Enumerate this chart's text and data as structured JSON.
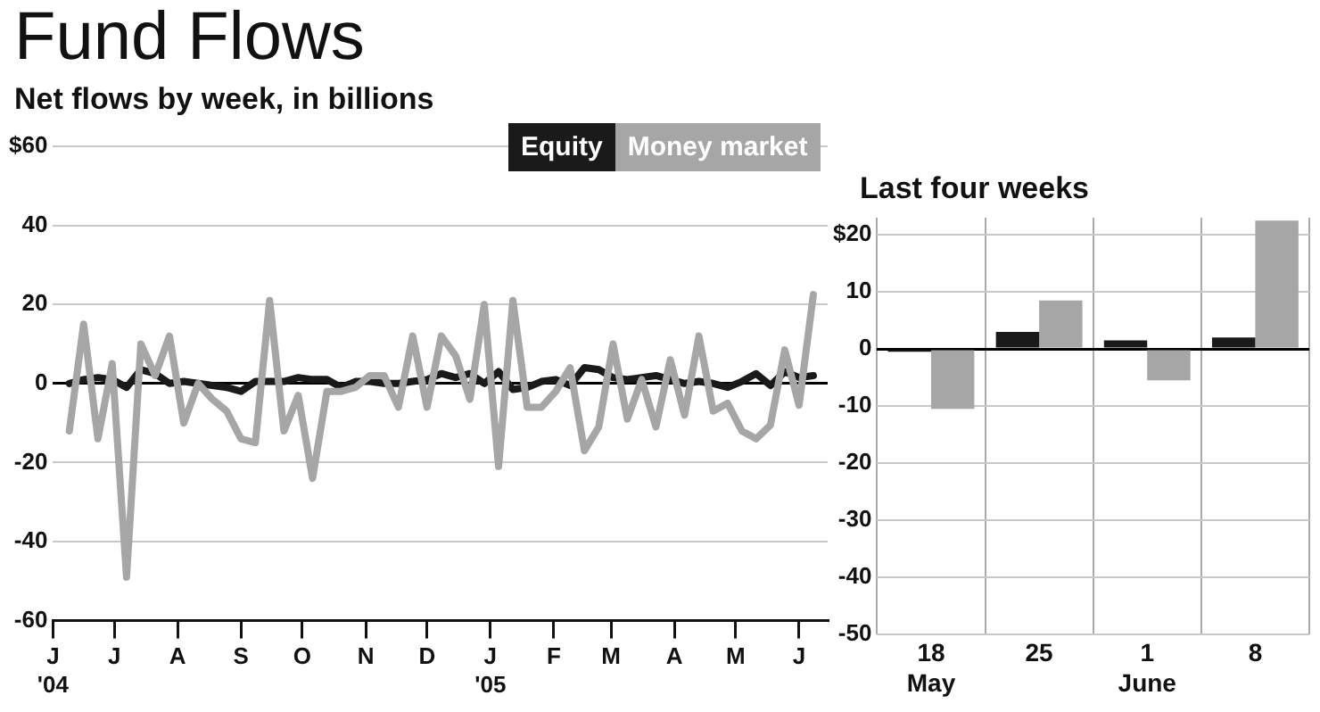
{
  "chart_data": [
    {
      "type": "line",
      "title": "Fund Flows",
      "subtitle": "Net flows by week, in billions",
      "x": [
        "2004-06-09",
        "2004-06-16",
        "2004-06-23",
        "2004-06-30",
        "2004-07-07",
        "2004-07-14",
        "2004-07-21",
        "2004-07-28",
        "2004-08-04",
        "2004-08-11",
        "2004-08-18",
        "2004-08-25",
        "2004-09-01",
        "2004-09-08",
        "2004-09-15",
        "2004-09-22",
        "2004-09-29",
        "2004-10-06",
        "2004-10-13",
        "2004-10-20",
        "2004-10-27",
        "2004-11-03",
        "2004-11-10",
        "2004-11-17",
        "2004-11-24",
        "2004-12-01",
        "2004-12-08",
        "2004-12-15",
        "2004-12-22",
        "2004-12-29",
        "2005-01-05",
        "2005-01-12",
        "2005-01-19",
        "2005-01-26",
        "2005-02-02",
        "2005-02-09",
        "2005-02-16",
        "2005-02-23",
        "2005-03-02",
        "2005-03-09",
        "2005-03-16",
        "2005-03-23",
        "2005-03-30",
        "2005-04-06",
        "2005-04-13",
        "2005-04-20",
        "2005-04-27",
        "2005-05-04",
        "2005-05-11",
        "2005-05-18",
        "2005-05-25",
        "2005-06-01",
        "2005-06-08"
      ],
      "series": [
        {
          "name": "Equity",
          "color": "#1a1a1a",
          "values": [
            0,
            1,
            1.5,
            1,
            -1,
            3.5,
            2.5,
            0,
            0.5,
            0,
            -0.5,
            -1,
            -2,
            0.5,
            0.5,
            0.5,
            1.5,
            1,
            1,
            -1,
            0.5,
            0.5,
            0,
            0,
            0.5,
            1,
            2.5,
            1.5,
            2.5,
            0,
            3,
            -1.5,
            -1,
            0.5,
            1,
            -0.5,
            4,
            3.5,
            1.5,
            1,
            1.5,
            2,
            1,
            0,
            0.5,
            0,
            -1,
            0.5,
            2.5,
            -0.5,
            3,
            1.5,
            2
          ]
        },
        {
          "name": "Money market",
          "color": "#a6a6a6",
          "values": [
            -12,
            15,
            -14,
            5,
            -49,
            10,
            2,
            12,
            -10,
            0,
            -4,
            -7,
            -14,
            -15,
            21,
            -12,
            -3,
            -24,
            -2,
            -2,
            -1,
            2,
            2,
            -6,
            12,
            -6,
            12,
            7,
            -4,
            20,
            -21,
            21,
            -6,
            -6,
            -2,
            4,
            -17,
            -11,
            10,
            -9,
            1,
            -11,
            6,
            -8,
            12,
            -7,
            -5,
            -12,
            -14,
            -10.5,
            8.5,
            -5.5,
            22.5
          ]
        }
      ],
      "xlim": [
        "2004-06-01",
        "2005-06-15"
      ],
      "xticks": [
        {
          "value": "2004-06-01",
          "label": "J\n'04"
        },
        {
          "value": "2004-07-01",
          "label": "J"
        },
        {
          "value": "2004-08-01",
          "label": "A"
        },
        {
          "value": "2004-09-01",
          "label": "S"
        },
        {
          "value": "2004-10-01",
          "label": "O"
        },
        {
          "value": "2004-11-01",
          "label": "N"
        },
        {
          "value": "2004-12-01",
          "label": "D"
        },
        {
          "value": "2005-01-01",
          "label": "J\n'05"
        },
        {
          "value": "2005-02-01",
          "label": "F"
        },
        {
          "value": "2005-03-01",
          "label": "M"
        },
        {
          "value": "2005-04-01",
          "label": "A"
        },
        {
          "value": "2005-05-01",
          "label": "M"
        },
        {
          "value": "2005-06-01",
          "label": "J"
        }
      ],
      "ylim": [
        -60,
        60
      ],
      "yticks": [
        -60,
        -40,
        -20,
        0,
        20,
        40,
        {
          "value": 60,
          "label": "$60"
        }
      ],
      "grid": "y",
      "legend": "top right",
      "marker": "none"
    },
    {
      "type": "bar",
      "title": "Last four weeks",
      "categories": [
        "18\nMay",
        "25",
        "1\nJune",
        "8"
      ],
      "series": [
        {
          "color": "#1a1a1a",
          "values": [
            -0.5,
            3,
            1.5,
            2
          ]
        },
        {
          "color": "#a6a6a6",
          "values": [
            -10.5,
            8.5,
            -5.5,
            22.5
          ]
        }
      ],
      "ylim": [
        -50,
        23
      ],
      "yticks": [
        -50,
        -40,
        -30,
        -20,
        -10,
        0,
        10,
        {
          "value": 20,
          "label": "$20"
        }
      ],
      "grid": true,
      "legend": false
    }
  ]
}
